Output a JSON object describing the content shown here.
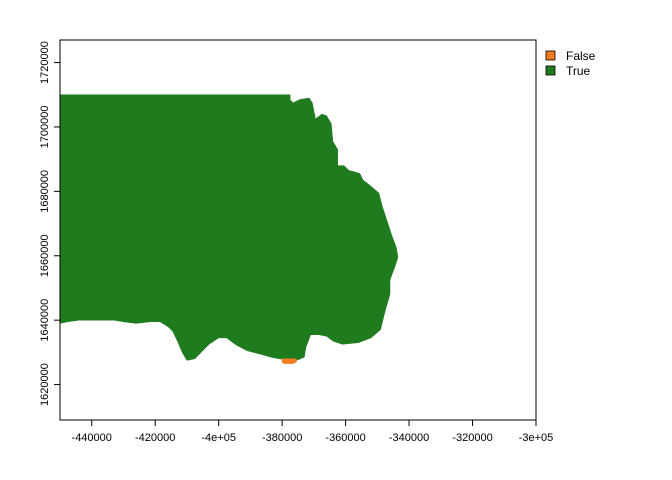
{
  "map": {
    "x_axis": {
      "min": -450000,
      "max": -300000,
      "ticks": [
        {
          "value": -440000,
          "label": "-440000"
        },
        {
          "value": -420000,
          "label": "-420000"
        },
        {
          "value": -400000,
          "label": "-4e+05"
        },
        {
          "value": -380000,
          "label": "-380000"
        },
        {
          "value": -360000,
          "label": "-360000"
        },
        {
          "value": -340000,
          "label": "-340000"
        },
        {
          "value": -320000,
          "label": "-320000"
        },
        {
          "value": -300000,
          "label": "-3e+05"
        }
      ]
    },
    "y_axis": {
      "min": 1609000,
      "max": 1727000,
      "ticks": [
        {
          "value": 1620000,
          "label": "1620000"
        },
        {
          "value": 1640000,
          "label": "1640000"
        },
        {
          "value": 1660000,
          "label": "1660000"
        },
        {
          "value": 1680000,
          "label": "1680000"
        },
        {
          "value": 1700000,
          "label": "1700000"
        },
        {
          "value": 1720000,
          "label": "1720000"
        }
      ]
    },
    "legend": {
      "placement": "top-right, outside plot",
      "entries": [
        {
          "key": "false",
          "label": "False",
          "color": "#f47b20"
        },
        {
          "key": "true",
          "label": "True",
          "color": "#1e7b1e"
        }
      ]
    },
    "regions": [
      {
        "class": "true",
        "polygon": [
          [
            -450000,
            1710000
          ],
          [
            -377500,
            1710000
          ],
          [
            -377500,
            1708500
          ],
          [
            -376500,
            1707500
          ],
          [
            -374500,
            1708500
          ],
          [
            -371500,
            1709000
          ],
          [
            -370500,
            1707500
          ],
          [
            -369500,
            1702500
          ],
          [
            -367500,
            1704000
          ],
          [
            -366000,
            1703500
          ],
          [
            -364500,
            1701000
          ],
          [
            -364000,
            1695500
          ],
          [
            -362500,
            1693000
          ],
          [
            -362500,
            1688000
          ],
          [
            -360500,
            1688000
          ],
          [
            -359000,
            1686500
          ],
          [
            -357000,
            1686000
          ],
          [
            -355500,
            1685500
          ],
          [
            -354500,
            1683500
          ],
          [
            -352500,
            1682000
          ],
          [
            -349500,
            1679500
          ],
          [
            -348500,
            1675500
          ],
          [
            -347000,
            1671000
          ],
          [
            -345500,
            1666500
          ],
          [
            -344000,
            1662500
          ],
          [
            -343500,
            1659500
          ],
          [
            -344500,
            1656500
          ],
          [
            -346000,
            1652500
          ],
          [
            -346000,
            1648000
          ],
          [
            -347500,
            1643000
          ],
          [
            -349000,
            1637000
          ],
          [
            -352000,
            1634500
          ],
          [
            -356000,
            1633000
          ],
          [
            -361000,
            1632500
          ],
          [
            -364000,
            1633500
          ],
          [
            -366000,
            1635000
          ],
          [
            -368500,
            1635500
          ],
          [
            -371000,
            1635500
          ],
          [
            -372500,
            1631500
          ],
          [
            -373000,
            1628500
          ],
          [
            -375500,
            1627500
          ],
          [
            -381000,
            1628000
          ],
          [
            -383500,
            1628500
          ],
          [
            -387000,
            1629500
          ],
          [
            -391000,
            1630500
          ],
          [
            -394000,
            1632000
          ],
          [
            -395500,
            1633000
          ],
          [
            -397500,
            1634500
          ],
          [
            -400000,
            1634500
          ],
          [
            -403000,
            1632500
          ],
          [
            -405500,
            1630000
          ],
          [
            -407500,
            1628000
          ],
          [
            -410000,
            1627500
          ],
          [
            -411500,
            1630000
          ],
          [
            -413000,
            1633500
          ],
          [
            -414500,
            1636500
          ],
          [
            -416000,
            1638000
          ],
          [
            -418500,
            1639500
          ],
          [
            -421500,
            1639500
          ],
          [
            -426000,
            1639000
          ],
          [
            -430000,
            1639500
          ],
          [
            -433000,
            1640000
          ],
          [
            -437000,
            1640000
          ],
          [
            -441000,
            1640000
          ],
          [
            -444000,
            1640000
          ],
          [
            -447500,
            1639500
          ],
          [
            -450000,
            1639000
          ]
        ]
      },
      {
        "class": "false",
        "polygon": [
          [
            -380000,
            1628000
          ],
          [
            -375500,
            1628000
          ],
          [
            -375500,
            1627000
          ],
          [
            -376500,
            1626500
          ],
          [
            -379500,
            1626500
          ],
          [
            -380000,
            1627000
          ]
        ]
      }
    ]
  }
}
